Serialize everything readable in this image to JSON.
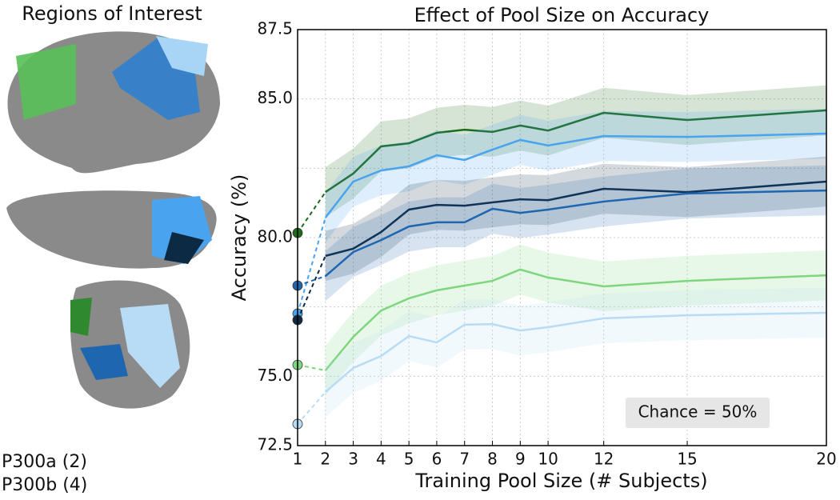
{
  "left_panel": {
    "title": "Regions of Interest",
    "legend": [
      {
        "label": "P300a (2)",
        "color": "#5fcf5f"
      },
      {
        "label": "P300b (4)",
        "color": "#3a9ee8"
      }
    ]
  },
  "chart_data": {
    "type": "line",
    "title": "Effect of Pool Size on Accuracy",
    "x_label": "Training Pool Size (# Subjects)",
    "y_label": "Accuracy (%)",
    "annotation": "Chance = 50%",
    "x": [
      1,
      2,
      3,
      4,
      5,
      6,
      7,
      8,
      9,
      10,
      12,
      15,
      20
    ],
    "xlim": [
      1,
      20
    ],
    "xticks": [
      1,
      2,
      3,
      4,
      5,
      6,
      7,
      8,
      9,
      10,
      12,
      15,
      20
    ],
    "ylim": [
      72.5,
      87.5
    ],
    "yticks": [
      {
        "value": 72.5,
        "label": "72.5"
      },
      {
        "value": 75,
        "label": "75.0"
      },
      {
        "value": 80,
        "label": "80.0"
      },
      {
        "value": 85,
        "label": "85.0"
      },
      {
        "value": 87.5,
        "label": "87.5"
      }
    ],
    "ygrid": [
      77.5,
      82.5
    ],
    "grid": true,
    "series": [
      {
        "color": "#1a6b1a",
        "error": 0.9,
        "values": [
          80.17,
          81.64,
          82.31,
          83.29,
          83.4,
          83.78,
          83.89,
          83.81,
          84.04,
          83.86,
          84.5,
          84.24,
          84.59
        ]
      },
      {
        "color": "#4aa3ef",
        "error": 0.9,
        "values": [
          77.26,
          80.72,
          82.02,
          82.42,
          82.57,
          82.97,
          82.8,
          83.17,
          83.52,
          83.32,
          83.66,
          83.63,
          83.75
        ]
      },
      {
        "color": "#0d2a44",
        "error": 0.9,
        "values": [
          77.03,
          79.34,
          79.6,
          80.2,
          81.01,
          81.18,
          81.15,
          81.27,
          81.38,
          81.35,
          81.76,
          81.64,
          82.02
        ]
      },
      {
        "color": "#1f66b0",
        "error": 0.9,
        "values": [
          78.27,
          78.61,
          79.48,
          79.91,
          80.4,
          80.55,
          80.55,
          81.04,
          80.89,
          81.01,
          81.3,
          81.59,
          81.7
        ]
      },
      {
        "color": "#7ed67e",
        "error": 0.9,
        "values": [
          75.41,
          75.21,
          76.42,
          77.37,
          77.81,
          78.1,
          78.27,
          78.44,
          78.85,
          78.56,
          78.24,
          78.44,
          78.64
        ]
      },
      {
        "color": "#b8dcf5",
        "error": 0.9,
        "values": [
          73.28,
          74.43,
          75.3,
          75.73,
          76.45,
          76.22,
          76.86,
          76.88,
          76.65,
          76.77,
          77.09,
          77.2,
          77.29
        ]
      }
    ]
  }
}
